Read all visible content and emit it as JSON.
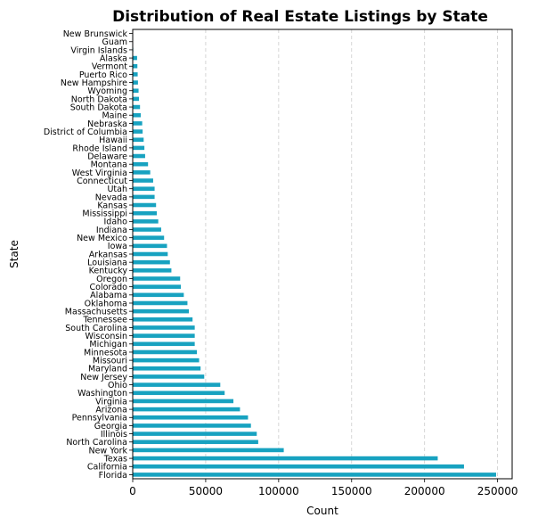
{
  "chart_data": {
    "type": "bar",
    "orientation": "horizontal",
    "title": "Distribution of Real Estate Listings by State",
    "xlabel": "Count",
    "ylabel": "State",
    "xlim": [
      0,
      260000
    ],
    "xticks": [
      0,
      50000,
      100000,
      150000,
      200000,
      250000
    ],
    "xtick_labels": [
      "0",
      "50000",
      "100000",
      "150000",
      "200000",
      "250000"
    ],
    "grid": "x-dashed",
    "bar_color": "#17a2c0",
    "categories": [
      "New Brunswick",
      "Guam",
      "Virgin Islands",
      "Alaska",
      "Vermont",
      "Puerto Rico",
      "New Hampshire",
      "Wyoming",
      "North Dakota",
      "South Dakota",
      "Maine",
      "Nebraska",
      "District of Columbia",
      "Hawaii",
      "Rhode Island",
      "Delaware",
      "Montana",
      "West Virginia",
      "Connecticut",
      "Utah",
      "Nevada",
      "Kansas",
      "Mississippi",
      "Idaho",
      "Indiana",
      "New Mexico",
      "Iowa",
      "Arkansas",
      "Louisiana",
      "Kentucky",
      "Oregon",
      "Colorado",
      "Alabama",
      "Oklahoma",
      "Massachusetts",
      "Tennessee",
      "South Carolina",
      "Wisconsin",
      "Michigan",
      "Minnesota",
      "Missouri",
      "Maryland",
      "New Jersey",
      "Ohio",
      "Washington",
      "Virginia",
      "Arizona",
      "Pennsylvania",
      "Georgia",
      "Illinois",
      "North Carolina",
      "New York",
      "Texas",
      "California",
      "Florida"
    ],
    "values": [
      100,
      200,
      400,
      3000,
      3200,
      3400,
      3600,
      4000,
      4300,
      5000,
      5500,
      6500,
      6800,
      7500,
      8000,
      8500,
      10500,
      12000,
      14000,
      15000,
      15000,
      16000,
      16500,
      17500,
      19500,
      21500,
      23500,
      24000,
      25500,
      26500,
      32500,
      33000,
      35000,
      37500,
      38500,
      41000,
      42500,
      42500,
      42500,
      44000,
      45500,
      46500,
      49000,
      60000,
      63000,
      69000,
      73500,
      79000,
      81000,
      85000,
      86000,
      103500,
      209000,
      227000,
      249000
    ]
  }
}
